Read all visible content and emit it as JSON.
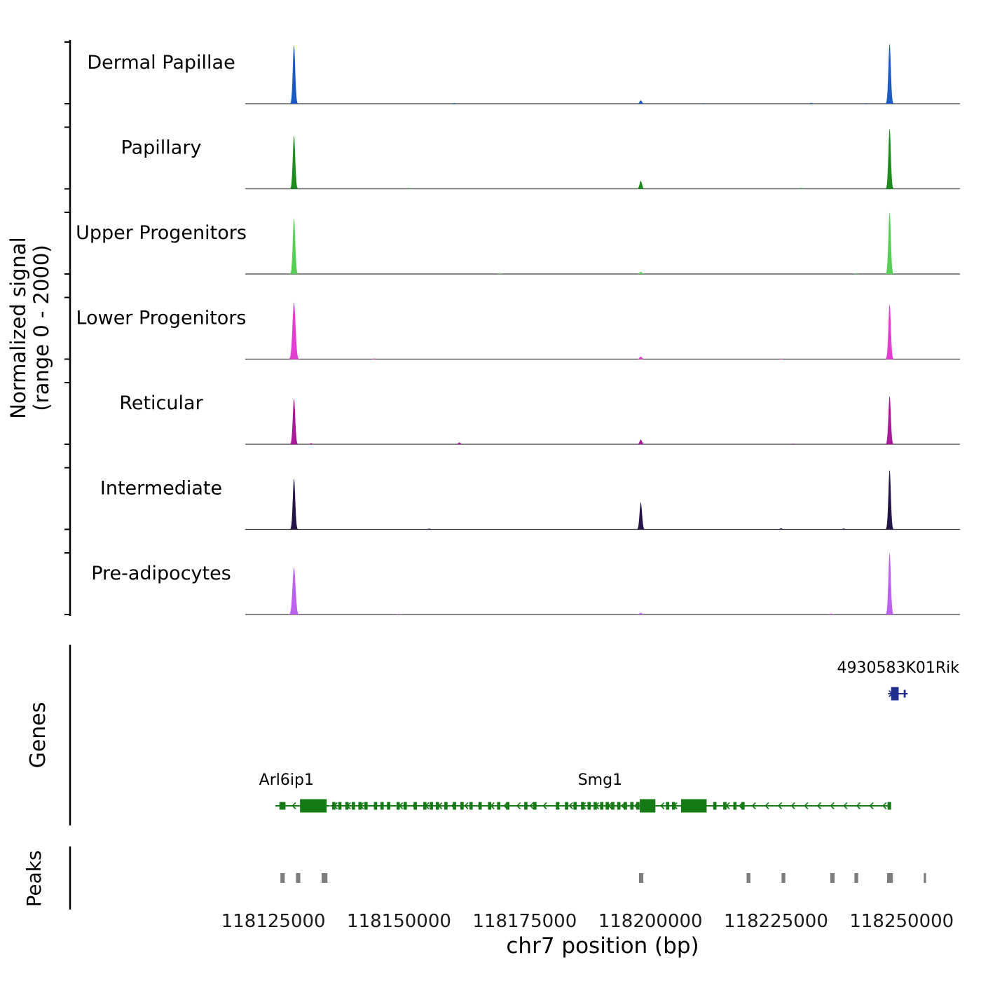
{
  "labels": {
    "signal_axis_line1": "Normalized signal",
    "signal_axis_line2": "(range 0 - 2000)",
    "genes": "Genes",
    "peaks": "Peaks",
    "x_axis": "chr7 position (bp)"
  },
  "chart_data": {
    "type": "area",
    "xlabel": "chr7 position (bp)",
    "ylabel": "Normalized signal (range 0 - 2000)",
    "xlim": [
      118119400,
      118261600
    ],
    "value_range": [
      0,
      2000
    ],
    "x_ticks": [
      118125000,
      118150000,
      118175000,
      118200000,
      118225000,
      118250000
    ],
    "grid": false,
    "tracks": [
      {
        "label": "Dermal Papillae",
        "color": "#1d5bc4",
        "peaks": [
          {
            "pos": 118129100,
            "value": 1900
          },
          {
            "pos": 118198100,
            "value": 110
          },
          {
            "pos": 118247600,
            "value": 1950
          },
          {
            "pos": 118161000,
            "value": 25
          },
          {
            "pos": 118210500,
            "value": 18
          },
          {
            "pos": 118232000,
            "value": 30
          },
          {
            "pos": 118243000,
            "value": 22
          }
        ]
      },
      {
        "label": "Papillary",
        "color": "#1f8c1f",
        "peaks": [
          {
            "pos": 118129100,
            "value": 1720
          },
          {
            "pos": 118198100,
            "value": 260
          },
          {
            "pos": 118247600,
            "value": 1950
          },
          {
            "pos": 118152000,
            "value": 20
          },
          {
            "pos": 118230000,
            "value": 22
          }
        ]
      },
      {
        "label": "Upper Progenitors",
        "color": "#55d055",
        "peaks": [
          {
            "pos": 118129100,
            "value": 1800
          },
          {
            "pos": 118198100,
            "value": 70
          },
          {
            "pos": 118247600,
            "value": 2000
          },
          {
            "pos": 118170000,
            "value": 18
          },
          {
            "pos": 118241000,
            "value": 25
          }
        ]
      },
      {
        "label": "Lower Progenitors",
        "color": "#e23ecf",
        "peaks": [
          {
            "pos": 118129100,
            "value": 1850,
            "sigma": 300
          },
          {
            "pos": 118198100,
            "value": 80
          },
          {
            "pos": 118247600,
            "value": 1780
          },
          {
            "pos": 118145000,
            "value": 22
          },
          {
            "pos": 118226000,
            "value": 18
          }
        ]
      },
      {
        "label": "Reticular",
        "color": "#a81a99",
        "peaks": [
          {
            "pos": 118129100,
            "value": 1480
          },
          {
            "pos": 118198100,
            "value": 150
          },
          {
            "pos": 118247600,
            "value": 1560
          },
          {
            "pos": 118162000,
            "value": 60
          },
          {
            "pos": 118132500,
            "value": 35
          },
          {
            "pos": 118228500,
            "value": 22
          }
        ]
      },
      {
        "label": "Intermediate",
        "color": "#241447",
        "peaks": [
          {
            "pos": 118129100,
            "value": 1650
          },
          {
            "pos": 118198100,
            "value": 880
          },
          {
            "pos": 118247600,
            "value": 1930
          },
          {
            "pos": 118156000,
            "value": 25
          },
          {
            "pos": 118226000,
            "value": 35
          },
          {
            "pos": 118238500,
            "value": 28
          }
        ]
      },
      {
        "label": "Pre-adipocytes",
        "color": "#bd62ee",
        "peaks": [
          {
            "pos": 118129100,
            "value": 1520,
            "sigma": 300
          },
          {
            "pos": 118198100,
            "value": 55
          },
          {
            "pos": 118247600,
            "value": 2000
          },
          {
            "pos": 118150000,
            "value": 22
          },
          {
            "pos": 118236000,
            "value": 35
          }
        ]
      }
    ],
    "genes": [
      {
        "name": "Arl6ip1",
        "strand": "-",
        "color": "#157a15",
        "row": "lower",
        "start": 118125400,
        "end": 118136200,
        "label_pos": 118127600,
        "exons": [
          [
            118126200,
            118127400,
            "s"
          ],
          [
            118130300,
            118135600,
            "l"
          ]
        ]
      },
      {
        "name": "Smg1",
        "strand": "-",
        "color": "#157a15",
        "row": "lower",
        "start": 118136300,
        "end": 118247900,
        "label_pos": 118190000,
        "exons": [
          [
            118136700,
            118137350,
            "s"
          ],
          [
            118137900,
            118138550,
            "s"
          ],
          [
            118139300,
            118139950,
            "s"
          ],
          [
            118140600,
            118141250,
            "s"
          ],
          [
            118141900,
            118142550,
            "s"
          ],
          [
            118143100,
            118143750,
            "s"
          ],
          [
            118145000,
            118145650,
            "s"
          ],
          [
            118146300,
            118146950,
            "s"
          ],
          [
            118147600,
            118148250,
            "s"
          ],
          [
            118149500,
            118150150,
            "s"
          ],
          [
            118150900,
            118151550,
            "s"
          ],
          [
            118152900,
            118153550,
            "s"
          ],
          [
            118154800,
            118155450,
            "s"
          ],
          [
            118156100,
            118156750,
            "s"
          ],
          [
            118157300,
            118157950,
            "s"
          ],
          [
            118159000,
            118159650,
            "s"
          ],
          [
            118160700,
            118161350,
            "s"
          ],
          [
            118162200,
            118162850,
            "s"
          ],
          [
            118164000,
            118164650,
            "s"
          ],
          [
            118165800,
            118166450,
            "s"
          ],
          [
            118167700,
            118168350,
            "s"
          ],
          [
            118169500,
            118170150,
            "s"
          ],
          [
            118171300,
            118171950,
            "s"
          ],
          [
            118174900,
            118175550,
            "s"
          ],
          [
            118176700,
            118177350,
            "s"
          ],
          [
            118181200,
            118181850,
            "s"
          ],
          [
            118183000,
            118183650,
            "s"
          ],
          [
            118184700,
            118185350,
            "s"
          ],
          [
            118186200,
            118186850,
            "s"
          ],
          [
            118187500,
            118188150,
            "s"
          ],
          [
            118188700,
            118189350,
            "s"
          ],
          [
            118190000,
            118190650,
            "s"
          ],
          [
            118191100,
            118191750,
            "s"
          ],
          [
            118192200,
            118192850,
            "s"
          ],
          [
            118193400,
            118194050,
            "s"
          ],
          [
            118194700,
            118195350,
            "s"
          ],
          [
            118196000,
            118196650,
            "s"
          ],
          [
            118197200,
            118197850,
            "s"
          ],
          [
            118197900,
            118201000,
            "l"
          ],
          [
            118203100,
            118203750,
            "s"
          ],
          [
            118204300,
            118204950,
            "s"
          ],
          [
            118206100,
            118211200,
            "l"
          ],
          [
            118212500,
            118213150,
            "s"
          ],
          [
            118214500,
            118215150,
            "s"
          ],
          [
            118216500,
            118217150,
            "s"
          ],
          [
            118218100,
            118218750,
            "s"
          ],
          [
            118247200,
            118247900,
            "s"
          ]
        ]
      },
      {
        "name": "4930583K01Rik",
        "strand": "+",
        "color": "#202e8c",
        "row": "upper",
        "start": 118247300,
        "end": 118251200,
        "label_pos": 118249300,
        "exons": [
          [
            118247900,
            118249400,
            "l"
          ],
          [
            118250400,
            118250800,
            "s"
          ]
        ]
      }
    ],
    "peak_color": "#7d7d7d",
    "peak_calls": [
      [
        118126400,
        118127250
      ],
      [
        118129500,
        118130350
      ],
      [
        118134600,
        118135750
      ],
      [
        118197750,
        118198600
      ],
      [
        118219150,
        118219900
      ],
      [
        118226100,
        118226850
      ],
      [
        118235800,
        118236650
      ],
      [
        118240600,
        118241350
      ],
      [
        118247100,
        118248250
      ],
      [
        118254400,
        118254850
      ]
    ]
  }
}
